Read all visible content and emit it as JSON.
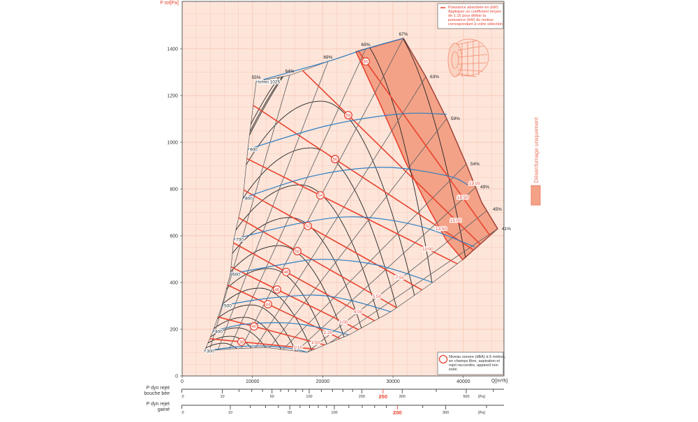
{
  "chart_data": {
    "type": "line",
    "title": "",
    "xlabel": "Q[m³/h]",
    "ylabel": "P tot[Pa]",
    "xlim": [
      0,
      45800
    ],
    "ylim": [
      0,
      1600
    ],
    "xticks": [
      0,
      10000,
      20000,
      30000,
      40000
    ],
    "yticks": [
      0,
      200,
      400,
      600,
      800,
      1000,
      1200,
      1400
    ],
    "grid": true,
    "envelope": [
      [
        3180,
        107
      ],
      [
        4370,
        191
      ],
      [
        5660,
        301
      ],
      [
        6850,
        436
      ],
      [
        7350,
        585
      ],
      [
        8640,
        761
      ],
      [
        9330,
        970
      ],
      [
        10530,
        1260
      ],
      [
        15290,
        1287
      ],
      [
        20750,
        1346
      ],
      [
        26120,
        1400
      ],
      [
        31480,
        1445
      ],
      [
        34660,
        1281
      ],
      [
        37630,
        1101
      ],
      [
        40420,
        907
      ],
      [
        42600,
        743
      ],
      [
        44880,
        630
      ],
      [
        39920,
        498
      ],
      [
        35650,
        400
      ],
      [
        29690,
        275
      ],
      [
        23730,
        176
      ],
      [
        17770,
        101
      ],
      [
        11820,
        122
      ],
      [
        6850,
        116
      ]
    ],
    "desenfumage_zone": [
      [
        24730,
        1388
      ],
      [
        28200,
        1161
      ],
      [
        31680,
        922
      ],
      [
        35150,
        713
      ],
      [
        37630,
        579
      ],
      [
        39920,
        498
      ],
      [
        44880,
        630
      ],
      [
        42600,
        743
      ],
      [
        40420,
        907
      ],
      [
        37630,
        1101
      ],
      [
        34660,
        1281
      ],
      [
        31480,
        1445
      ]
    ],
    "speed_curves": [
      {
        "label": "tr/mn 1025",
        "points": [
          [
            10530,
            1260
          ],
          [
            20750,
            1346
          ],
          [
            26120,
            1400
          ],
          [
            31480,
            1445
          ]
        ]
      },
      {
        "label": "900",
        "points": [
          [
            9330,
            970
          ],
          [
            20750,
            1072
          ],
          [
            31180,
            1122
          ],
          [
            37630,
            1120
          ]
        ]
      },
      {
        "label": "800",
        "points": [
          [
            8640,
            761
          ],
          [
            18770,
            857
          ],
          [
            28700,
            893
          ],
          [
            37640,
            857
          ],
          [
            40620,
            818
          ]
        ]
      },
      {
        "label": "700",
        "points": [
          [
            7350,
            585
          ],
          [
            16780,
            654
          ],
          [
            24730,
            681
          ],
          [
            33660,
            642
          ],
          [
            41610,
            552
          ]
        ]
      },
      {
        "label": "600",
        "points": [
          [
            6850,
            436
          ],
          [
            13800,
            475
          ],
          [
            19760,
            499
          ],
          [
            27700,
            475
          ],
          [
            35650,
            400
          ]
        ]
      },
      {
        "label": "500",
        "points": [
          [
            5660,
            301
          ],
          [
            11820,
            331
          ],
          [
            18770,
            346
          ],
          [
            23730,
            325
          ],
          [
            29690,
            275
          ]
        ]
      },
      {
        "label": "400",
        "points": [
          [
            4370,
            191
          ],
          [
            8840,
            221
          ],
          [
            14800,
            227
          ],
          [
            19760,
            206
          ],
          [
            23730,
            176
          ]
        ]
      },
      {
        "label": "300",
        "points": [
          [
            3180,
            107
          ],
          [
            7850,
            125
          ],
          [
            11820,
            128
          ],
          [
            15790,
            116
          ],
          [
            17770,
            101
          ]
        ]
      }
    ],
    "efficiency_lines": [
      {
        "label": "55%",
        "from": [
          3180,
          107
        ],
        "to": [
          10530,
          1260
        ],
        "side": "top"
      },
      {
        "label": "64%",
        "from": [
          3870,
          107
        ],
        "to": [
          15290,
          1287
        ],
        "side": "top"
      },
      {
        "label": "69%",
        "from": [
          5060,
          110
        ],
        "to": [
          20750,
          1346
        ],
        "side": "top"
      },
      {
        "label": "69%",
        "from": [
          6650,
          113
        ],
        "to": [
          26120,
          1400
        ],
        "side": "top"
      },
      {
        "label": "67%",
        "from": [
          8340,
          116
        ],
        "to": [
          31480,
          1445
        ],
        "side": "top"
      },
      {
        "label": "63%",
        "from": [
          10330,
          116
        ],
        "to": [
          34660,
          1281
        ],
        "side": "right"
      },
      {
        "label": "59%",
        "from": [
          12310,
          116
        ],
        "to": [
          37630,
          1101
        ],
        "side": "right"
      },
      {
        "label": "54%",
        "from": [
          14300,
          113
        ],
        "to": [
          40420,
          907
        ],
        "side": "right"
      },
      {
        "label": "49%",
        "from": [
          16290,
          107
        ],
        "to": [
          41810,
          809
        ],
        "side": "right"
      },
      {
        "label": "45%",
        "from": [
          17770,
          101
        ],
        "to": [
          43590,
          713
        ],
        "side": "right"
      },
      {
        "label": "41%",
        "from": [
          20750,
          137
        ],
        "to": [
          44880,
          630
        ],
        "side": "right"
      }
    ],
    "pressure_arches": [
      {
        "apex": [
          19760,
          1176
        ]
      },
      {
        "apex": [
          18270,
          976
        ]
      },
      {
        "apex": [
          16780,
          818
        ]
      },
      {
        "apex": [
          15290,
          678
        ]
      },
      {
        "apex": [
          13800,
          558
        ]
      },
      {
        "apex": [
          12310,
          460
        ]
      },
      {
        "apex": [
          11020,
          376
        ]
      },
      {
        "apex": [
          9830,
          304
        ]
      },
      {
        "apex": [
          8840,
          251
        ]
      },
      {
        "apex": [
          7850,
          206
        ]
      },
      {
        "apex": [
          6850,
          170
        ]
      },
      {
        "apex": [
          5860,
          140
        ]
      },
      {
        "apex": [
          23500,
          1480
        ],
        "steep": true
      },
      {
        "apex": [
          27000,
          1560
        ],
        "steep": true
      },
      {
        "apex": [
          30500,
          1650
        ],
        "steep": true
      }
    ],
    "power_lines": [
      {
        "db": "38",
        "db_at": [
          8440,
          146
        ],
        "kw": "1.10",
        "kw_at": [
          16480,
          122
        ]
      },
      {
        "db": "40",
        "db_at": [
          10230,
          212
        ],
        "kw": "1.50",
        "kw_at": [
          18970,
          143
        ]
      },
      {
        "db": "44",
        "db_at": [
          12210,
          307
        ],
        "kw": "2.20",
        "kw_at": [
          20750,
          185
        ]
      },
      {
        "db": "46",
        "db_at": [
          13500,
          370
        ],
        "kw": "3.00",
        "kw_at": [
          22940,
          230
        ]
      },
      {
        "db": "48",
        "db_at": [
          14800,
          445
        ],
        "kw": "4.00",
        "kw_at": [
          25020,
          275
        ]
      },
      {
        "db": "50",
        "db_at": [
          16380,
          534
        ],
        "kw": "5.50",
        "kw_at": [
          27700,
          340
        ]
      },
      {
        "db": "52",
        "db_at": [
          17870,
          642
        ],
        "kw": "7.50",
        "kw_at": [
          30980,
          421
        ]
      },
      {
        "db": "54",
        "db_at": [
          19660,
          773
        ],
        "kw": "11.00",
        "kw_at": [
          34950,
          543
        ]
      },
      {
        "db": "56",
        "db_at": [
          21750,
          928
        ],
        "kw": "13.50",
        "kw_at": [
          36840,
          630
        ]
      },
      {
        "db": "58",
        "db_at": [
          23630,
          1116
        ],
        "kw": "15.00",
        "kw_at": [
          38930,
          666
        ]
      },
      {
        "db": "60",
        "db_at": [
          26120,
          1346
        ],
        "kw": "18.50",
        "kw_at": [
          39920,
          764
        ]
      },
      {
        "db": "",
        "db_at": [
          31480,
          1445
        ],
        "kw": "19.00",
        "kw_at": [
          41610,
          824
        ]
      }
    ],
    "scales": [
      {
        "label_lines": [
          "P dyn rejet",
          "bouche bée"
        ],
        "unit": "[Pa]",
        "ticks": [
          10,
          20,
          30,
          40,
          50,
          60,
          70,
          80,
          90,
          100,
          120,
          140,
          160,
          180,
          200,
          250,
          300,
          400,
          500,
          600
        ],
        "labels": [
          0,
          10,
          50,
          100,
          200,
          250,
          300,
          500
        ],
        "highlight": 250
      },
      {
        "label_lines": [
          "P dyn rejet",
          "gainé"
        ],
        "unit": "[Pa]",
        "ticks": [
          10,
          20,
          30,
          40,
          50,
          60,
          70,
          80,
          90,
          100,
          120,
          140,
          160,
          180,
          200,
          250,
          300,
          400
        ],
        "labels": [
          0,
          10,
          50,
          100,
          200,
          300
        ],
        "highlight": 200
      }
    ]
  },
  "legend_power": [
    "Puissance absorbée en (kW)",
    "Appliquer un coefficient moyen",
    "de 1.15 pour définir la",
    "puissance (kW) du moteur",
    "correspondant à votre sélection"
  ],
  "legend_noise": [
    "Niveau sonore (dBA) à 6 mètres,",
    "en champs libre, aspiration et",
    "rejet raccordés, appareil non",
    "isolé."
  ],
  "side_label": "Désenfumage uniquement",
  "colors": {
    "speed": "#2f7fc1",
    "power": "#e8432f",
    "efficiency": "#666666",
    "arch": "#222222",
    "zone": "#f4a287",
    "plot_bg": "#fde5da",
    "grid": "#f8ccb8"
  }
}
